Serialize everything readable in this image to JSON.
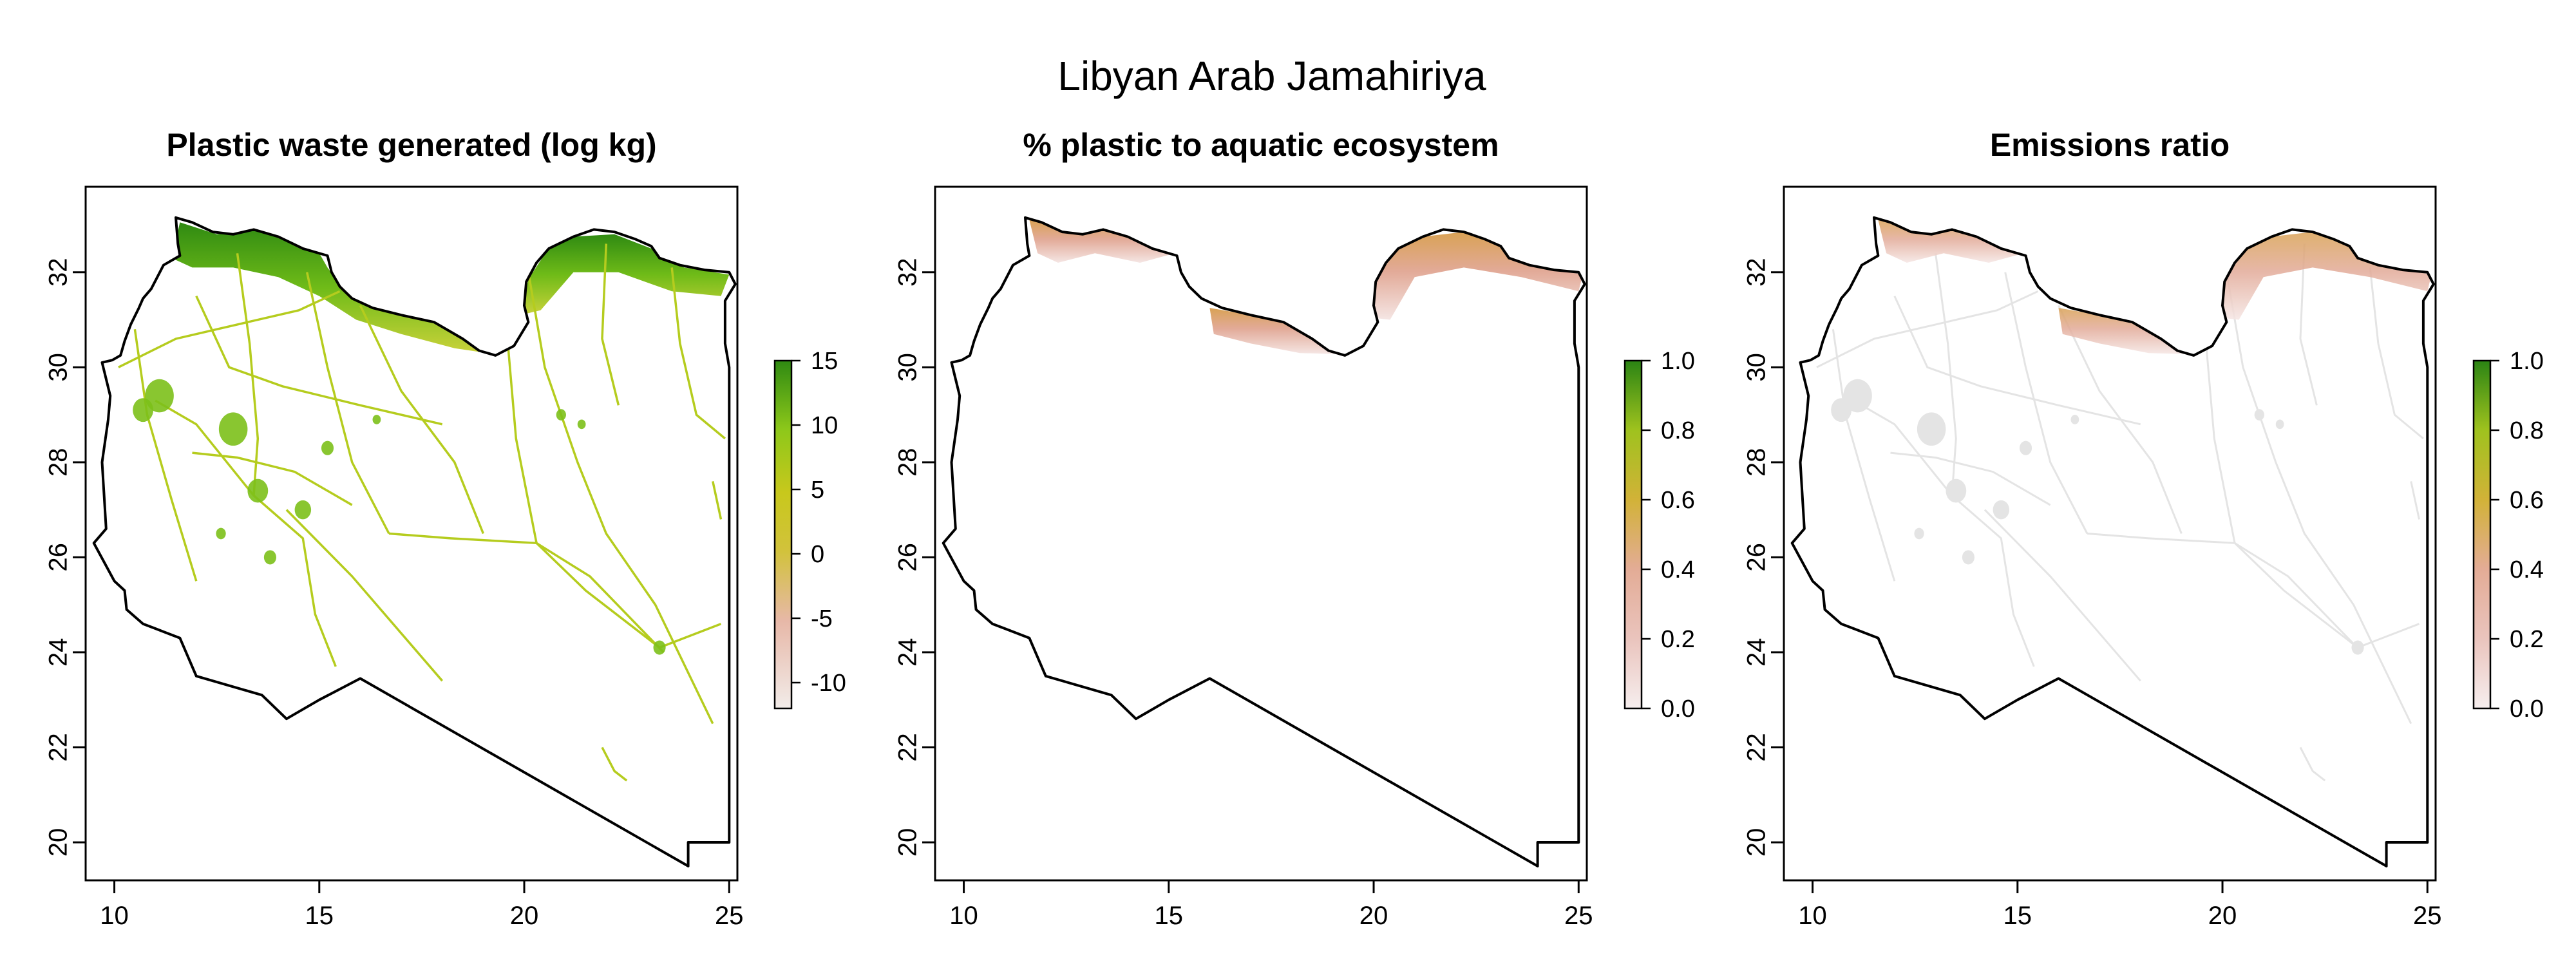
{
  "title": "Libyan Arab Jamahiriya",
  "colors": {
    "waste_ramp": [
      "#f2ece9",
      "#e7b8a8",
      "#d2c23c",
      "#c8c81c",
      "#8ec81a",
      "#2f8a12"
    ],
    "ratio_ramp": [
      "#f6eeee",
      "#eac4bd",
      "#e3ac96",
      "#d2b238",
      "#9fc21e",
      "#2b8414"
    ],
    "coast_waste": "#4ca514",
    "roads_waste": "#b5cc1e",
    "cities_waste": "#7cc01a",
    "near_zero": "#e4e4e4",
    "axis": "#000000"
  },
  "panels": [
    {
      "title": "Plastic waste generated (log kg)",
      "variable": "waste",
      "legend": {
        "ticks": [
          "15",
          "10",
          "5",
          "0",
          "-5",
          "-10"
        ],
        "values": [
          15,
          10,
          5,
          0,
          -5,
          -10
        ],
        "range": [
          -12,
          15
        ]
      }
    },
    {
      "title": "% plastic to aquatic ecosystem",
      "variable": "aquatic",
      "legend": {
        "ticks": [
          "1.0",
          "0.8",
          "0.6",
          "0.4",
          "0.2",
          "0.0"
        ],
        "values": [
          1.0,
          0.8,
          0.6,
          0.4,
          0.2,
          0.0
        ],
        "range": [
          0,
          1
        ]
      }
    },
    {
      "title": "Emissions ratio",
      "variable": "emissions",
      "legend": {
        "ticks": [
          "1.0",
          "0.8",
          "0.6",
          "0.4",
          "0.2",
          "0.0"
        ],
        "values": [
          1.0,
          0.8,
          0.6,
          0.4,
          0.2,
          0.0
        ],
        "range": [
          0,
          1
        ]
      }
    }
  ],
  "axes": {
    "x_ticks": [
      "10",
      "15",
      "20",
      "25"
    ],
    "x_values": [
      10,
      15,
      20,
      25
    ],
    "y_ticks": [
      "20",
      "22",
      "24",
      "26",
      "28",
      "30",
      "32"
    ],
    "y_values": [
      20,
      22,
      24,
      26,
      28,
      30,
      32
    ],
    "x_range": [
      9.3,
      25.2
    ],
    "y_range": [
      19.2,
      33.8
    ]
  },
  "boundary": [
    [
      9.95,
      30.15
    ],
    [
      10.15,
      30.25
    ],
    [
      10.25,
      30.55
    ],
    [
      10.4,
      30.9
    ],
    [
      10.6,
      31.25
    ],
    [
      10.7,
      31.45
    ],
    [
      10.9,
      31.65
    ],
    [
      11.2,
      32.15
    ],
    [
      11.6,
      32.35
    ],
    [
      11.55,
      32.6
    ],
    [
      11.5,
      33.15
    ],
    [
      11.9,
      33.05
    ],
    [
      12.4,
      32.85
    ],
    [
      12.9,
      32.8
    ],
    [
      13.4,
      32.9
    ],
    [
      14.0,
      32.75
    ],
    [
      14.6,
      32.5
    ],
    [
      15.2,
      32.35
    ],
    [
      15.3,
      32.0
    ],
    [
      15.5,
      31.7
    ],
    [
      15.8,
      31.45
    ],
    [
      16.3,
      31.25
    ],
    [
      17.0,
      31.1
    ],
    [
      17.8,
      30.95
    ],
    [
      18.5,
      30.6
    ],
    [
      18.9,
      30.35
    ],
    [
      19.3,
      30.25
    ],
    [
      19.75,
      30.45
    ],
    [
      20.1,
      30.95
    ],
    [
      20.0,
      31.3
    ],
    [
      20.05,
      31.8
    ],
    [
      20.3,
      32.2
    ],
    [
      20.6,
      32.5
    ],
    [
      21.2,
      32.75
    ],
    [
      21.7,
      32.9
    ],
    [
      22.2,
      32.85
    ],
    [
      22.7,
      32.7
    ],
    [
      23.1,
      32.55
    ],
    [
      23.3,
      32.3
    ],
    [
      23.8,
      32.15
    ],
    [
      24.4,
      32.05
    ],
    [
      25.0,
      32.0
    ],
    [
      25.15,
      31.75
    ],
    [
      24.9,
      31.4
    ],
    [
      24.9,
      30.5
    ],
    [
      25.0,
      30.0
    ],
    [
      25.0,
      22.0
    ],
    [
      25.0,
      20.0
    ],
    [
      24.0,
      20.0
    ],
    [
      24.0,
      19.5
    ],
    [
      16.0,
      23.45
    ],
    [
      15.0,
      23.0
    ],
    [
      14.2,
      22.6
    ],
    [
      13.6,
      23.1
    ],
    [
      12.0,
      23.5
    ],
    [
      11.6,
      24.3
    ],
    [
      11.0,
      24.5
    ],
    [
      10.7,
      24.6
    ],
    [
      10.3,
      24.9
    ],
    [
      10.25,
      25.3
    ],
    [
      10.0,
      25.5
    ],
    [
      9.5,
      26.3
    ],
    [
      9.8,
      26.6
    ],
    [
      9.7,
      28.0
    ],
    [
      9.85,
      28.9
    ],
    [
      9.9,
      29.4
    ],
    [
      9.7,
      30.1
    ],
    [
      9.95,
      30.15
    ]
  ],
  "layers": {
    "waste_coast": [
      [
        11.6,
        33.05
      ],
      [
        12.5,
        32.8
      ],
      [
        13.4,
        32.9
      ],
      [
        14.3,
        32.65
      ],
      [
        15.0,
        32.4
      ],
      [
        15.2,
        32.1
      ],
      [
        15.5,
        31.75
      ],
      [
        16.1,
        31.35
      ],
      [
        17.0,
        31.15
      ],
      [
        17.9,
        30.95
      ],
      [
        18.6,
        30.55
      ],
      [
        19.1,
        30.3
      ],
      [
        18.3,
        30.4
      ],
      [
        17.0,
        30.7
      ],
      [
        15.9,
        31.0
      ],
      [
        15.0,
        31.5
      ],
      [
        14.0,
        31.9
      ],
      [
        12.9,
        32.1
      ],
      [
        11.9,
        32.1
      ],
      [
        11.4,
        32.3
      ]
    ],
    "waste_coast_east": [
      [
        19.9,
        31.1
      ],
      [
        20.1,
        31.85
      ],
      [
        20.55,
        32.45
      ],
      [
        21.2,
        32.75
      ],
      [
        22.2,
        32.8
      ],
      [
        23.1,
        32.5
      ],
      [
        23.9,
        32.1
      ],
      [
        25.0,
        31.95
      ],
      [
        24.8,
        31.5
      ],
      [
        23.6,
        31.6
      ],
      [
        22.3,
        32.0
      ],
      [
        21.2,
        32.0
      ],
      [
        20.4,
        31.2
      ]
    ],
    "waste_cities": [
      {
        "x": 11.1,
        "y": 29.4,
        "r": 0.35
      },
      {
        "x": 10.7,
        "y": 29.1,
        "r": 0.25
      },
      {
        "x": 12.9,
        "y": 28.7,
        "r": 0.35
      },
      {
        "x": 13.5,
        "y": 27.4,
        "r": 0.25
      },
      {
        "x": 14.6,
        "y": 27.0,
        "r": 0.2
      },
      {
        "x": 15.2,
        "y": 28.3,
        "r": 0.15
      },
      {
        "x": 20.9,
        "y": 29.0,
        "r": 0.12
      },
      {
        "x": 21.4,
        "y": 28.8,
        "r": 0.1
      },
      {
        "x": 23.3,
        "y": 24.1,
        "r": 0.15
      },
      {
        "x": 13.8,
        "y": 26.0,
        "r": 0.15
      },
      {
        "x": 12.6,
        "y": 26.5,
        "r": 0.12
      },
      {
        "x": 16.4,
        "y": 28.9,
        "r": 0.1
      }
    ],
    "roads": [
      [
        [
          10.1,
          30.0
        ],
        [
          11.5,
          30.6
        ],
        [
          13.0,
          30.9
        ],
        [
          14.5,
          31.2
        ],
        [
          15.5,
          31.6
        ]
      ],
      [
        [
          11.0,
          29.3
        ],
        [
          12.0,
          28.8
        ],
        [
          13.4,
          27.3
        ],
        [
          14.6,
          26.4
        ],
        [
          14.9,
          24.8
        ],
        [
          15.4,
          23.7
        ]
      ],
      [
        [
          10.5,
          30.8
        ],
        [
          10.8,
          29.0
        ],
        [
          11.4,
          27.2
        ],
        [
          12.0,
          25.5
        ]
      ],
      [
        [
          13.0,
          32.4
        ],
        [
          13.3,
          30.5
        ],
        [
          13.5,
          28.5
        ],
        [
          13.4,
          27.3
        ]
      ],
      [
        [
          14.7,
          32.0
        ],
        [
          15.2,
          30.0
        ],
        [
          15.8,
          28.0
        ],
        [
          16.7,
          26.5
        ]
      ],
      [
        [
          16.0,
          31.3
        ],
        [
          17.0,
          29.5
        ],
        [
          18.3,
          28.0
        ],
        [
          19.0,
          26.5
        ]
      ],
      [
        [
          19.6,
          30.5
        ],
        [
          19.8,
          28.5
        ],
        [
          20.3,
          26.3
        ],
        [
          21.5,
          25.3
        ],
        [
          23.3,
          24.1
        ],
        [
          24.8,
          24.6
        ]
      ],
      [
        [
          20.1,
          32.0
        ],
        [
          20.5,
          30.0
        ],
        [
          21.3,
          28.0
        ],
        [
          22.0,
          26.5
        ],
        [
          23.2,
          25.0
        ],
        [
          24.6,
          22.5
        ]
      ],
      [
        [
          16.7,
          26.5
        ],
        [
          18.2,
          26.4
        ],
        [
          20.3,
          26.3
        ],
        [
          21.6,
          25.6
        ],
        [
          23.4,
          24.0
        ]
      ],
      [
        [
          14.2,
          27.0
        ],
        [
          15.8,
          25.6
        ],
        [
          17.2,
          24.2
        ],
        [
          18.0,
          23.4
        ]
      ],
      [
        [
          23.6,
          32.1
        ],
        [
          23.8,
          30.5
        ],
        [
          24.2,
          29.0
        ],
        [
          24.9,
          28.5
        ]
      ],
      [
        [
          22.0,
          32.6
        ],
        [
          21.9,
          30.6
        ],
        [
          22.3,
          29.2
        ]
      ],
      [
        [
          12.0,
          31.5
        ],
        [
          12.8,
          30.0
        ],
        [
          14.1,
          29.6
        ],
        [
          16.0,
          29.2
        ],
        [
          18.0,
          28.8
        ]
      ],
      [
        [
          11.9,
          28.2
        ],
        [
          13.0,
          28.1
        ],
        [
          14.4,
          27.8
        ],
        [
          15.8,
          27.1
        ]
      ],
      [
        [
          21.9,
          22.0
        ],
        [
          22.2,
          21.5
        ],
        [
          22.5,
          21.3
        ]
      ],
      [
        [
          24.6,
          27.6
        ],
        [
          24.8,
          26.8
        ]
      ]
    ],
    "aquatic_coast": [
      [
        11.6,
        33.1
      ],
      [
        12.6,
        32.85
      ],
      [
        13.5,
        32.9
      ],
      [
        14.4,
        32.65
      ],
      [
        15.15,
        32.4
      ],
      [
        14.3,
        32.2
      ],
      [
        13.2,
        32.4
      ],
      [
        12.3,
        32.2
      ],
      [
        11.8,
        32.4
      ]
    ],
    "aquatic_sirte": [
      [
        16.0,
        31.25
      ],
      [
        17.0,
        31.1
      ],
      [
        17.8,
        30.95
      ],
      [
        18.6,
        30.55
      ],
      [
        19.1,
        30.28
      ],
      [
        18.2,
        30.3
      ],
      [
        17.0,
        30.5
      ],
      [
        16.1,
        30.7
      ]
    ],
    "aquatic_east": [
      [
        19.9,
        31.05
      ],
      [
        20.05,
        31.85
      ],
      [
        20.55,
        32.45
      ],
      [
        21.2,
        32.75
      ],
      [
        22.2,
        32.85
      ],
      [
        23.1,
        32.55
      ],
      [
        23.9,
        32.15
      ],
      [
        25.1,
        31.95
      ],
      [
        25.0,
        31.6
      ],
      [
        23.6,
        31.9
      ],
      [
        22.2,
        32.1
      ],
      [
        21.0,
        31.9
      ],
      [
        20.4,
        31.0
      ]
    ]
  }
}
